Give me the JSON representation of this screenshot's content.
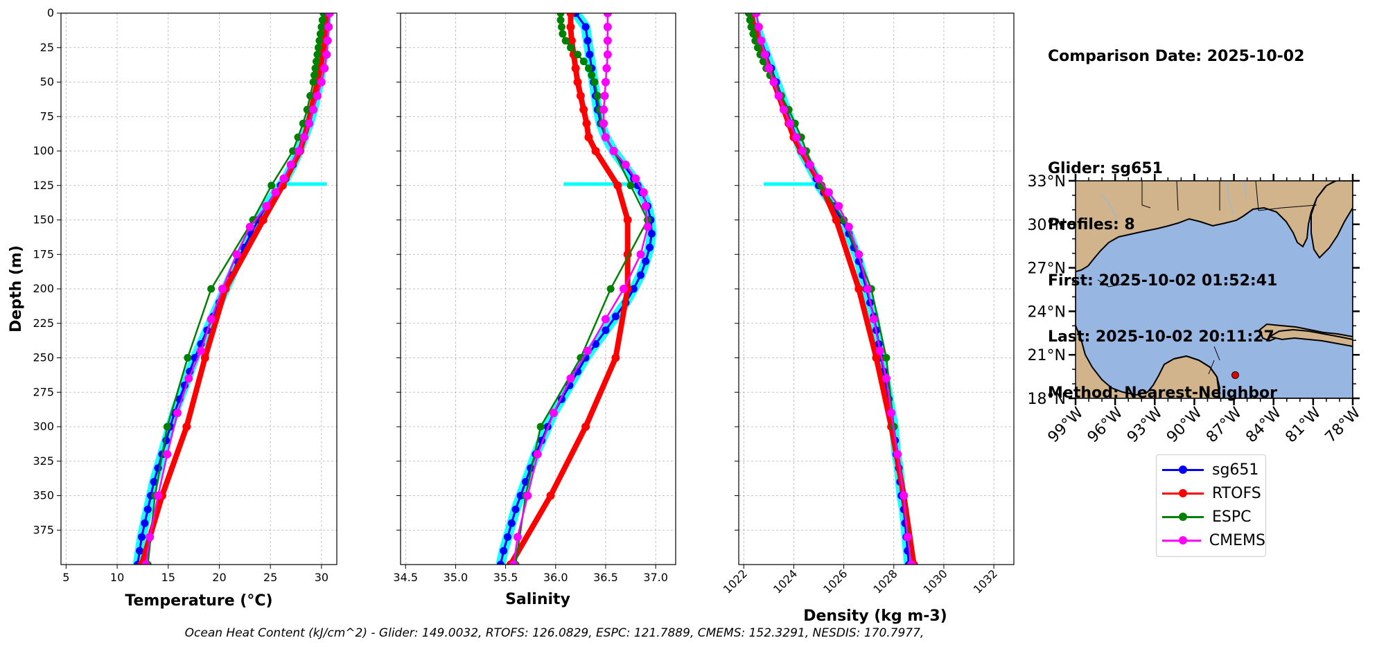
{
  "info": {
    "comparison_date": "Comparison Date: 2025-10-02",
    "glider": "Glider: sg651",
    "profiles": "Profiles: 8",
    "first": "First: 2025-10-02 01:52:41",
    "last": "Last: 2025-10-02 20:11:27",
    "method": "Method: Nearest-Neighbor"
  },
  "footer": "Ocean Heat Content (kJ/cm^2) - Glider: 149.0032,  RTOFS: 126.0829,  ESPC: 121.7889,  CMEMS: 152.3291,  NESDIS: 170.7977,",
  "colors": {
    "sg651": "#0000ff",
    "RTOFS": "#ff0000",
    "ESPC": "#008000",
    "CMEMS": "#ff00ff",
    "glider_raw": "#00ffff",
    "land": "#d2b48c",
    "ocean": "#98b6e2"
  },
  "legend": [
    {
      "label": "sg651",
      "color": "#0000ff"
    },
    {
      "label": "RTOFS",
      "color": "#ff0000"
    },
    {
      "label": "ESPC",
      "color": "#008000"
    },
    {
      "label": "CMEMS",
      "color": "#ff00ff"
    }
  ],
  "chart_data": [
    {
      "type": "line",
      "xlabel": "Temperature (°C)",
      "ylabel": "Depth (m)",
      "xlim": [
        4.5,
        31.5
      ],
      "ylim": [
        400,
        0
      ],
      "xticks": [
        5,
        10,
        15,
        20,
        25,
        30
      ],
      "yticks": [
        0,
        25,
        50,
        75,
        100,
        125,
        150,
        175,
        200,
        225,
        250,
        275,
        300,
        325,
        350,
        375
      ],
      "grid": true,
      "series": [
        {
          "name": "sg651",
          "depth": [
            0,
            10,
            20,
            30,
            40,
            50,
            60,
            70,
            80,
            90,
            100,
            110,
            120,
            125,
            130,
            140,
            150,
            160,
            170,
            180,
            190,
            200,
            210,
            220,
            230,
            240,
            250,
            260,
            270,
            280,
            290,
            300,
            310,
            320,
            330,
            340,
            350,
            360,
            370,
            380,
            390,
            400
          ],
          "values": [
            30.5,
            30.4,
            30.3,
            30.2,
            30.0,
            29.8,
            29.5,
            29.2,
            28.8,
            28.3,
            27.8,
            27.2,
            26.5,
            26.0,
            25.5,
            24.6,
            23.8,
            23.1,
            22.4,
            21.8,
            21.2,
            20.6,
            20.0,
            19.4,
            18.8,
            18.2,
            17.6,
            17.1,
            16.6,
            16.1,
            15.6,
            15.2,
            14.8,
            14.4,
            14.0,
            13.6,
            13.3,
            13.0,
            12.7,
            12.4,
            12.2,
            12.0
          ]
        },
        {
          "name": "RTOFS",
          "depth": [
            0,
            10,
            20,
            30,
            40,
            50,
            60,
            70,
            80,
            90,
            100,
            125,
            150,
            200,
            250,
            300,
            350,
            400
          ],
          "values": [
            30.6,
            30.5,
            30.3,
            30.1,
            29.9,
            29.6,
            29.3,
            29.0,
            28.7,
            28.3,
            27.9,
            26.2,
            24.3,
            20.6,
            18.6,
            16.8,
            14.4,
            12.4
          ]
        },
        {
          "name": "ESPC",
          "depth": [
            0,
            5,
            10,
            15,
            20,
            25,
            30,
            35,
            40,
            45,
            50,
            60,
            70,
            80,
            90,
            100,
            125,
            150,
            200,
            250,
            300,
            350,
            400
          ],
          "values": [
            30.2,
            30.1,
            30.0,
            29.9,
            29.8,
            29.7,
            29.6,
            29.5,
            29.4,
            29.3,
            29.2,
            28.9,
            28.6,
            28.2,
            27.7,
            27.2,
            25.1,
            23.3,
            19.2,
            16.9,
            14.9,
            13.7,
            13.0
          ]
        },
        {
          "name": "CMEMS",
          "depth": [
            0,
            10,
            20,
            30,
            40,
            50,
            60,
            70,
            80,
            90,
            100,
            110,
            120,
            130,
            140,
            155,
            175,
            200,
            222,
            245,
            265,
            290,
            320,
            350,
            380,
            400
          ],
          "values": [
            30.8,
            30.7,
            30.6,
            30.5,
            30.3,
            30.0,
            29.6,
            29.2,
            28.8,
            28.3,
            27.8,
            27.0,
            26.3,
            25.5,
            24.6,
            23.0,
            21.7,
            20.3,
            19.2,
            18.2,
            17.0,
            15.9,
            14.9,
            14.0,
            13.2,
            12.8
          ]
        }
      ],
      "raw_spike": {
        "depth": 124,
        "from": 26,
        "to": 30.5
      }
    },
    {
      "type": "line",
      "xlabel": "Salinity",
      "ylim": [
        400,
        0
      ],
      "xlim": [
        34.45,
        37.2
      ],
      "xticks": [
        34.5,
        35.0,
        35.5,
        36.0,
        36.5,
        37.0
      ],
      "grid": true,
      "series": [
        {
          "name": "sg651",
          "depth": [
            0,
            10,
            20,
            30,
            40,
            50,
            60,
            70,
            80,
            90,
            100,
            110,
            120,
            125,
            130,
            140,
            150,
            160,
            170,
            180,
            190,
            200,
            210,
            220,
            230,
            240,
            250,
            260,
            270,
            280,
            290,
            300,
            310,
            320,
            330,
            340,
            350,
            360,
            370,
            380,
            390,
            400
          ],
          "values": [
            36.2,
            36.3,
            36.32,
            36.34,
            36.36,
            36.38,
            36.4,
            36.42,
            36.45,
            36.5,
            36.58,
            36.68,
            36.78,
            36.82,
            36.86,
            36.92,
            36.95,
            36.96,
            36.94,
            36.9,
            36.85,
            36.78,
            36.7,
            36.6,
            36.5,
            36.4,
            36.3,
            36.22,
            36.14,
            36.06,
            35.98,
            35.92,
            35.86,
            35.8,
            35.75,
            35.7,
            35.65,
            35.6,
            35.56,
            35.52,
            35.48,
            35.45
          ]
        },
        {
          "name": "RTOFS",
          "depth": [
            0,
            10,
            20,
            30,
            40,
            50,
            60,
            70,
            80,
            90,
            100,
            125,
            150,
            175,
            200,
            250,
            300,
            350,
            400
          ],
          "values": [
            36.15,
            36.15,
            36.16,
            36.18,
            36.2,
            36.22,
            36.25,
            36.28,
            36.31,
            36.33,
            36.4,
            36.62,
            36.72,
            36.72,
            36.72,
            36.6,
            36.3,
            35.95,
            35.55
          ]
        },
        {
          "name": "ESPC",
          "depth": [
            0,
            5,
            10,
            15,
            20,
            25,
            30,
            35,
            40,
            45,
            50,
            60,
            70,
            80,
            90,
            100,
            125,
            150,
            200,
            250,
            300,
            350,
            400
          ],
          "values": [
            36.05,
            36.05,
            36.06,
            36.07,
            36.1,
            36.15,
            36.22,
            36.28,
            36.33,
            36.36,
            36.39,
            36.42,
            36.44,
            36.46,
            36.5,
            36.58,
            36.75,
            36.92,
            36.55,
            36.25,
            35.85,
            35.7,
            35.6
          ]
        },
        {
          "name": "CMEMS",
          "depth": [
            0,
            10,
            20,
            30,
            40,
            50,
            60,
            70,
            80,
            90,
            100,
            110,
            120,
            130,
            140,
            155,
            175,
            200,
            222,
            245,
            265,
            290,
            320,
            350,
            380,
            400
          ],
          "values": [
            36.52,
            36.52,
            36.52,
            36.52,
            36.51,
            36.5,
            36.49,
            36.48,
            36.48,
            36.5,
            36.58,
            36.7,
            36.8,
            36.88,
            36.9,
            36.92,
            36.85,
            36.68,
            36.5,
            36.32,
            36.15,
            35.98,
            35.82,
            35.72,
            35.62,
            35.58
          ]
        }
      ],
      "raw_spike": {
        "depth": 124,
        "from": 36.08,
        "to": 36.78
      }
    },
    {
      "type": "line",
      "xlabel": "Density (kg m-3)",
      "ylim": [
        400,
        0
      ],
      "xlim": [
        1021.8,
        1032.8
      ],
      "xticks": [
        1022,
        1024,
        1026,
        1028,
        1030,
        1032
      ],
      "grid": true,
      "series": [
        {
          "name": "sg651",
          "depth": [
            0,
            10,
            20,
            30,
            40,
            50,
            60,
            70,
            80,
            90,
            100,
            110,
            120,
            125,
            130,
            140,
            150,
            160,
            170,
            180,
            190,
            200,
            210,
            220,
            230,
            240,
            250,
            260,
            270,
            280,
            290,
            300,
            310,
            320,
            330,
            340,
            350,
            360,
            370,
            380,
            390,
            400
          ],
          "values": [
            1022.3,
            1022.5,
            1022.7,
            1022.9,
            1023.1,
            1023.3,
            1023.5,
            1023.7,
            1023.9,
            1024.1,
            1024.3,
            1024.6,
            1024.9,
            1025.0,
            1025.2,
            1025.6,
            1025.9,
            1026.2,
            1026.4,
            1026.6,
            1026.75,
            1026.9,
            1027.05,
            1027.2,
            1027.3,
            1027.4,
            1027.5,
            1027.6,
            1027.7,
            1027.8,
            1027.9,
            1028.0,
            1028.05,
            1028.1,
            1028.2,
            1028.25,
            1028.3,
            1028.4,
            1028.45,
            1028.5,
            1028.55,
            1028.6
          ]
        },
        {
          "name": "RTOFS",
          "depth": [
            0,
            10,
            20,
            30,
            40,
            50,
            60,
            70,
            80,
            90,
            100,
            125,
            150,
            200,
            250,
            300,
            350,
            400
          ],
          "values": [
            1022.3,
            1022.4,
            1022.6,
            1022.8,
            1023.0,
            1023.2,
            1023.4,
            1023.6,
            1023.8,
            1024.0,
            1024.3,
            1025.1,
            1025.7,
            1026.6,
            1027.3,
            1027.9,
            1028.4,
            1028.8
          ]
        },
        {
          "name": "ESPC",
          "depth": [
            0,
            5,
            10,
            15,
            20,
            25,
            30,
            35,
            40,
            45,
            50,
            60,
            70,
            80,
            90,
            100,
            125,
            150,
            200,
            250,
            300,
            350,
            400
          ],
          "values": [
            1022.2,
            1022.25,
            1022.3,
            1022.38,
            1022.46,
            1022.56,
            1022.66,
            1022.78,
            1022.9,
            1023.05,
            1023.2,
            1023.5,
            1023.8,
            1024.05,
            1024.3,
            1024.5,
            1025.1,
            1026.0,
            1027.1,
            1027.7,
            1028.0,
            1028.4,
            1028.7
          ]
        },
        {
          "name": "CMEMS",
          "depth": [
            0,
            10,
            20,
            30,
            40,
            50,
            60,
            70,
            80,
            90,
            100,
            110,
            120,
            130,
            140,
            155,
            175,
            200,
            222,
            245,
            265,
            290,
            320,
            350,
            380,
            400
          ],
          "values": [
            1022.5,
            1022.6,
            1022.7,
            1022.85,
            1023.0,
            1023.2,
            1023.4,
            1023.6,
            1023.85,
            1024.1,
            1024.35,
            1024.65,
            1025.0,
            1025.4,
            1025.8,
            1026.2,
            1026.6,
            1026.95,
            1027.2,
            1027.45,
            1027.7,
            1027.9,
            1028.15,
            1028.4,
            1028.55,
            1028.7
          ]
        }
      ],
      "raw_spike": {
        "depth": 124,
        "from": 1022.8,
        "to": 1025.0
      }
    }
  ],
  "map": {
    "lat_ticks": [
      "33°N",
      "30°N",
      "27°N",
      "24°N",
      "21°N",
      "18°N"
    ],
    "lon_ticks": [
      "99°W",
      "96°W",
      "93°W",
      "90°W",
      "87°W",
      "84°W",
      "81°W",
      "78°W"
    ],
    "extent": {
      "lon": [
        -99,
        -78
      ],
      "lat": [
        18,
        33
      ]
    },
    "glider_position": {
      "lon": -86.9,
      "lat": 19.6
    }
  }
}
